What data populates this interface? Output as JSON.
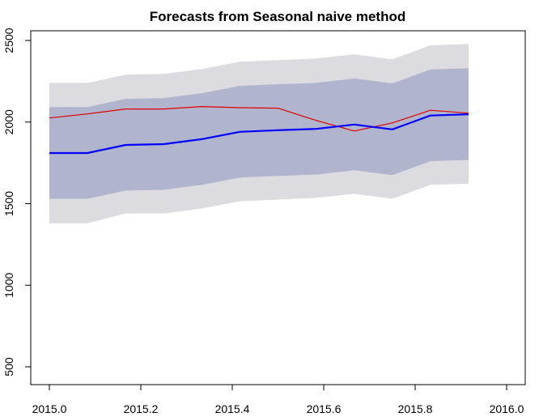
{
  "chart_data": {
    "type": "line",
    "title": "Forecasts from Seasonal naive method",
    "xlabel": "",
    "ylabel": "",
    "xlim": [
      2015.0,
      2016.0
    ],
    "ylim": [
      500,
      2500
    ],
    "x_ticks": [
      2015.0,
      2015.2,
      2015.4,
      2015.6,
      2015.8,
      2016.0
    ],
    "x_tick_labels": [
      "2015.0",
      "2015.2",
      "2015.4",
      "2015.6",
      "2015.8",
      "2016.0"
    ],
    "y_ticks": [
      500,
      1000,
      1500,
      2000,
      2500
    ],
    "y_tick_labels": [
      "500",
      "1000",
      "1500",
      "2000",
      "2500"
    ],
    "grid": false,
    "x": [
      2015.0,
      2015.0833,
      2015.1667,
      2015.25,
      2015.3333,
      2015.4167,
      2015.5,
      2015.5833,
      2015.6667,
      2015.75,
      2015.8333,
      2015.9167
    ],
    "series": [
      {
        "role": "forecast",
        "color": "#0000ff",
        "values": [
          1810,
          1810,
          1860,
          1865,
          1895,
          1940,
          1950,
          1958,
          1985,
          1955,
          2040,
          2048
        ]
      },
      {
        "role": "actual",
        "color": "#dd0000",
        "values": [
          2025,
          2050,
          2080,
          2080,
          2095,
          2088,
          2085,
          2010,
          1945,
          1995,
          2072,
          2055
        ]
      }
    ],
    "intervals": [
      {
        "level": 95,
        "color": "#dbdbe0",
        "lower": [
          1380,
          1380,
          1440,
          1440,
          1470,
          1515,
          1525,
          1535,
          1560,
          1530,
          1615,
          1622
        ],
        "upper": [
          2240,
          2240,
          2290,
          2295,
          2325,
          2370,
          2380,
          2390,
          2415,
          2385,
          2470,
          2478
        ]
      },
      {
        "level": 80,
        "color": "#b0b4cc",
        "lower": [
          1530,
          1530,
          1580,
          1585,
          1615,
          1660,
          1670,
          1678,
          1705,
          1675,
          1760,
          1768
        ],
        "upper": [
          2092,
          2092,
          2142,
          2147,
          2177,
          2222,
          2232,
          2240,
          2267,
          2237,
          2322,
          2330
        ]
      }
    ]
  }
}
